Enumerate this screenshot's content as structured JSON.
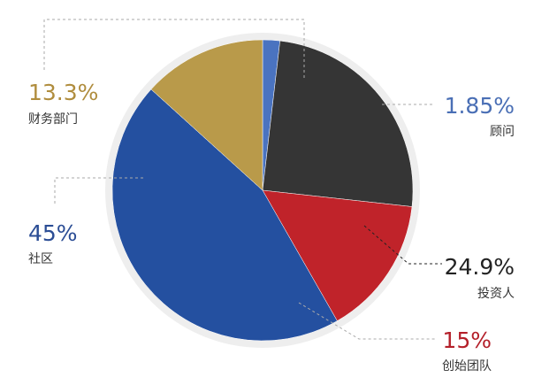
{
  "chart_data": {
    "type": "pie",
    "slices": [
      {
        "label": "顾问",
        "value": 1.85,
        "display": "1.85%",
        "color": "#4a73c0",
        "label_color": "#4a6fb5"
      },
      {
        "label": "投资人",
        "value": 24.9,
        "display": "24.9%",
        "color": "#353535",
        "label_color": "#222222"
      },
      {
        "label": "创始团队",
        "value": 15,
        "display": "15%",
        "color": "#c0232a",
        "label_color": "#b4202a"
      },
      {
        "label": "社区",
        "value": 45,
        "display": "45%",
        "color": "#2450a0",
        "label_color": "#2b4d95"
      },
      {
        "label": "财务部门",
        "value": 13.3,
        "display": "13.3%",
        "color": "#b99a4a",
        "label_color": "#b08d3e"
      }
    ],
    "start_angle_deg": 0,
    "direction": "clockwise",
    "ring_color": "#eeeeee"
  }
}
